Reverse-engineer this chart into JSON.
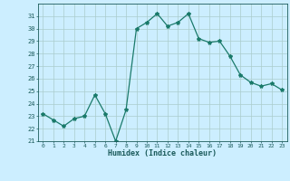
{
  "x": [
    0,
    1,
    2,
    3,
    4,
    5,
    6,
    7,
    8,
    9,
    10,
    11,
    12,
    13,
    14,
    15,
    16,
    17,
    18,
    19,
    20,
    21,
    22,
    23
  ],
  "y": [
    23.2,
    22.7,
    22.2,
    22.8,
    23.0,
    24.7,
    23.2,
    21.0,
    23.5,
    30.0,
    30.5,
    31.2,
    30.2,
    30.5,
    31.2,
    29.2,
    28.9,
    29.0,
    27.8,
    26.3,
    25.7,
    25.4,
    25.6,
    25.1
  ],
  "xlabel": "Humidex (Indice chaleur)",
  "ylim": [
    21,
    32
  ],
  "xlim": [
    -0.5,
    23.5
  ],
  "line_color": "#1a7a6a",
  "bg_color": "#cceeff",
  "grid_color": "#aacccc",
  "tick_label_color": "#1a5a5a",
  "xlabel_color": "#1a5a5a"
}
